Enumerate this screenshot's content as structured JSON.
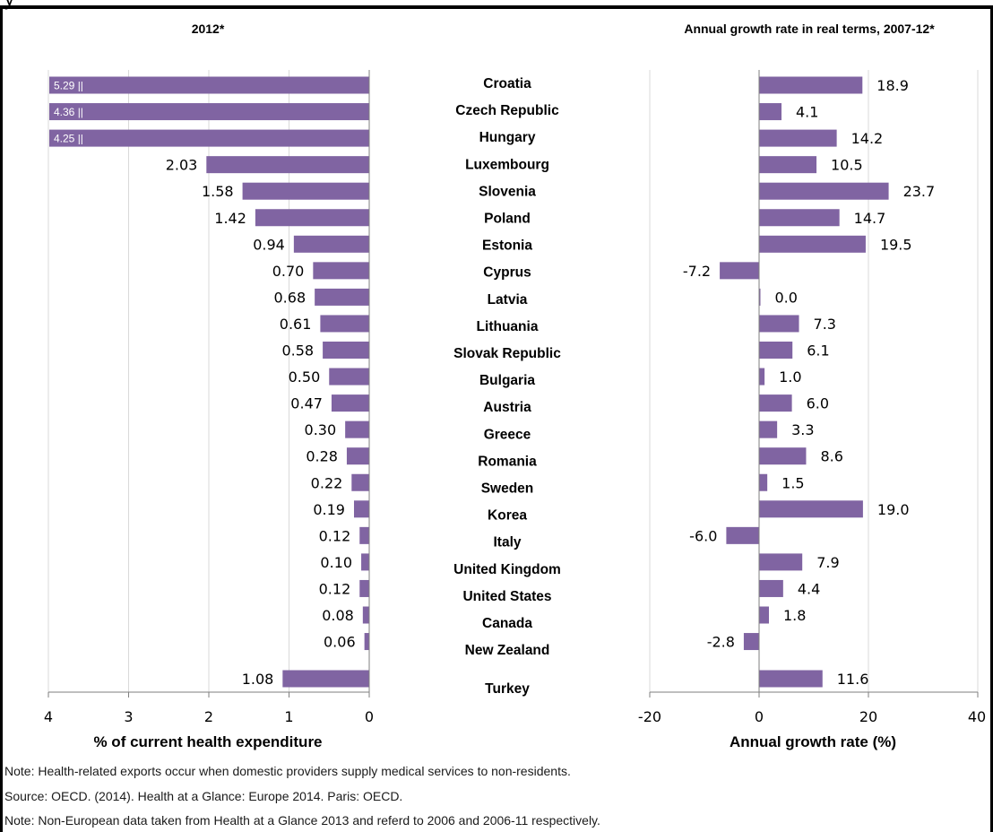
{
  "top_partial_text": "y",
  "colors": {
    "bar": "#8064a2",
    "border": "#000000",
    "grid": "#d9d9d9",
    "axis": "#7f7f7f"
  },
  "chart_data": [
    {
      "type": "bar",
      "orientation": "horizontal",
      "title": "2012*",
      "xlabel": "% of current health expenditure",
      "xlim": [
        4,
        0
      ],
      "xticks": [
        "4",
        "3",
        "2",
        "1",
        "0"
      ],
      "grid": true,
      "categories": [
        "Croatia",
        "Czech Republic",
        "Hungary",
        "Luxembourg",
        "Slovenia",
        "Poland",
        "Estonia",
        "Cyprus",
        "Latvia",
        "Lithuania",
        "Slovak Republic",
        "Bulgaria",
        "Austria",
        "Greece",
        "Romania",
        "Sweden",
        "Korea",
        "Italy",
        "United Kingdom",
        "United States",
        "Canada",
        "New Zealand",
        "Turkey"
      ],
      "values": [
        5.29,
        4.36,
        4.25,
        2.03,
        1.58,
        1.42,
        0.94,
        0.7,
        0.68,
        0.61,
        0.58,
        0.5,
        0.47,
        0.3,
        0.28,
        0.22,
        0.19,
        0.12,
        0.1,
        0.12,
        0.08,
        0.06,
        1.08
      ],
      "data_labels": [
        "5.29",
        "4.36",
        "4.25",
        "2.03",
        "1.58",
        "1.42",
        "0.94",
        "0.70",
        "0.68",
        "0.61",
        "0.58",
        "0.50",
        "0.47",
        "0.30",
        "0.28",
        "0.22",
        "0.19",
        "0.12",
        "0.10",
        "0.12",
        "0.08",
        "0.06",
        "1.08"
      ],
      "truncated": [
        true,
        true,
        true,
        false,
        false,
        false,
        false,
        false,
        false,
        false,
        false,
        false,
        false,
        false,
        false,
        false,
        false,
        false,
        false,
        false,
        false,
        false,
        false
      ]
    },
    {
      "type": "bar",
      "orientation": "horizontal",
      "title": "Annual growth rate in real terms, 2007-12*",
      "xlabel": "Annual growth rate (%)",
      "xlim": [
        -20,
        40
      ],
      "xticks": [
        "-20",
        "0",
        "20",
        "40"
      ],
      "grid": true,
      "categories": [
        "Croatia",
        "Czech Republic",
        "Hungary",
        "Luxembourg",
        "Slovenia",
        "Poland",
        "Estonia",
        "Cyprus",
        "Latvia",
        "Lithuania",
        "Slovak Republic",
        "Bulgaria",
        "Austria",
        "Greece",
        "Romania",
        "Sweden",
        "Korea",
        "Italy",
        "United Kingdom",
        "United States",
        "Canada",
        "New Zealand",
        "Turkey"
      ],
      "values": [
        18.9,
        4.1,
        14.2,
        10.5,
        23.7,
        14.7,
        19.5,
        -7.2,
        0.0,
        7.3,
        6.1,
        1.0,
        6.0,
        3.3,
        8.6,
        1.5,
        19.0,
        -6.0,
        7.9,
        4.4,
        1.8,
        -2.8,
        11.6
      ],
      "data_labels": [
        "18.9",
        "4.1",
        "14.2",
        "10.5",
        "23.7",
        "14.7",
        "19.5",
        "-7.2",
        "0.0",
        "7.3",
        "6.1",
        "1.0",
        "6.0",
        "3.3",
        "8.6",
        "1.5",
        "19.0",
        "-6.0",
        "7.9",
        "4.4",
        "1.8",
        "-2.8",
        "11.6"
      ]
    }
  ],
  "notes": [
    "Note: Health-related exports occur when domestic providers supply medical services to non-residents.",
    "Source: OECD. (2014). Health at a Glance: Europe 2014. Paris: OECD.",
    "Note: Non-European data taken from Health at a Glance 2013 and referd to 2006 and 2006-11 respectively."
  ]
}
